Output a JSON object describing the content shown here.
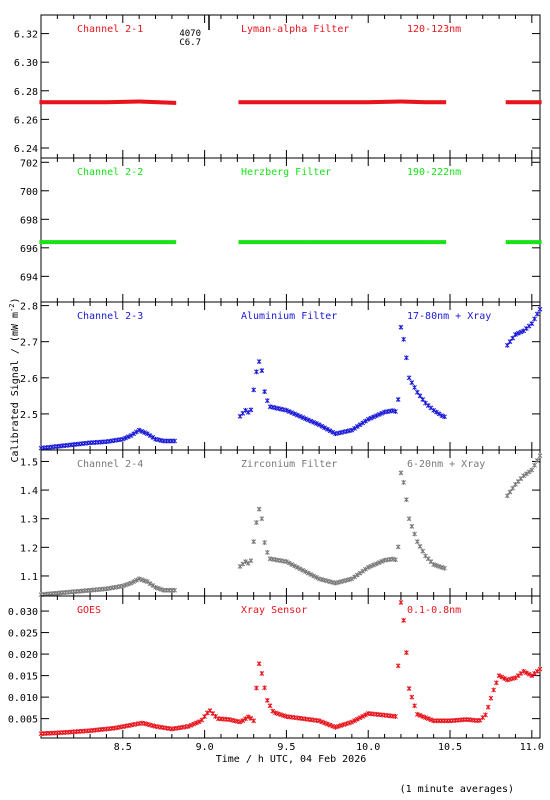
{
  "figure": {
    "ylabel": "Calibrated Signal / (mW m",
    "ylabel_exp": "-2",
    "ylabel_end": ")",
    "xlabel": "Time / h UTC, 04 Feb 2026",
    "footer": "(1 minute averages)",
    "marker_label_1": "4070",
    "marker_label_2": "C6.7"
  },
  "colors": {
    "red": "#e8141c",
    "green": "#17e317",
    "blue": "#1a1ad8",
    "gray": "#7a7a7a"
  },
  "chart_data": [
    {
      "type": "scatter",
      "labels": [
        "Channel 2-1",
        "Lyman-alpha Filter",
        "120-123nm"
      ],
      "color": "#e8141c",
      "xlim": [
        8.0,
        11.05
      ],
      "ylim": [
        6.233,
        6.333
      ],
      "ytick_values": [
        6.24,
        6.26,
        6.28,
        6.3,
        6.32
      ],
      "ytick_labels": [
        "6.24",
        "6.26",
        "6.28",
        "6.30",
        "6.32"
      ],
      "gaps": [
        [
          8.83,
          9.21
        ],
        [
          10.48,
          10.85
        ]
      ],
      "series": {
        "x": [
          8.0,
          8.2,
          8.4,
          8.6,
          8.83,
          9.21,
          9.5,
          9.8,
          10.0,
          10.2,
          10.35,
          10.48,
          10.85,
          11.05
        ],
        "y": [
          6.272,
          6.272,
          6.272,
          6.2725,
          6.2715,
          6.272,
          6.272,
          6.272,
          6.272,
          6.2725,
          6.272,
          6.272,
          6.272,
          6.272
        ]
      }
    },
    {
      "type": "scatter",
      "labels": [
        "Channel 2-2",
        "Herzberg Filter",
        "190-222nm"
      ],
      "color": "#17e317",
      "xlim": [
        8.0,
        11.05
      ],
      "ylim": [
        692.2,
        702.3
      ],
      "ytick_values": [
        694,
        696,
        698,
        700,
        702
      ],
      "ytick_labels": [
        "694",
        "696",
        "698",
        "700",
        "702"
      ],
      "gaps": [
        [
          8.83,
          9.21
        ],
        [
          10.48,
          10.85
        ]
      ],
      "series": {
        "x": [
          8.0,
          8.83,
          9.21,
          10.48,
          10.85,
          11.05
        ],
        "y": [
          696.4,
          696.4,
          696.4,
          696.4,
          696.4,
          696.4
        ]
      }
    },
    {
      "type": "scatter",
      "labels": [
        "Channel 2-3",
        "Aluminium Filter",
        "17-80nm + Xray"
      ],
      "color": "#1a1ad8",
      "xlim": [
        8.0,
        11.05
      ],
      "ylim": [
        2.4,
        2.81
      ],
      "ytick_values": [
        2.5,
        2.6,
        2.7,
        2.8
      ],
      "ytick_labels": [
        "2.5",
        "2.6",
        "2.7",
        "2.8"
      ],
      "gaps": [
        [
          8.83,
          9.21
        ],
        [
          10.48,
          10.85
        ]
      ],
      "series": {
        "x": [
          8.0,
          8.1,
          8.2,
          8.3,
          8.4,
          8.5,
          8.55,
          8.6,
          8.65,
          8.7,
          8.75,
          8.83,
          9.21,
          9.25,
          9.28,
          9.31,
          9.33,
          9.35,
          9.37,
          9.4,
          9.5,
          9.6,
          9.7,
          9.8,
          9.9,
          10.0,
          10.1,
          10.16,
          10.18,
          10.2,
          10.22,
          10.25,
          10.3,
          10.35,
          10.4,
          10.45,
          10.48,
          10.85,
          10.9,
          10.95,
          11.0,
          11.05
        ],
        "y": [
          2.405,
          2.41,
          2.415,
          2.42,
          2.423,
          2.43,
          2.44,
          2.455,
          2.445,
          2.43,
          2.425,
          2.425,
          2.49,
          2.51,
          2.5,
          2.6,
          2.65,
          2.62,
          2.55,
          2.52,
          2.51,
          2.49,
          2.47,
          2.445,
          2.455,
          2.485,
          2.505,
          2.51,
          2.5,
          2.74,
          2.7,
          2.6,
          2.56,
          2.53,
          2.51,
          2.495,
          2.49,
          2.69,
          2.72,
          2.73,
          2.75,
          2.79
        ]
      }
    },
    {
      "type": "scatter",
      "labels": [
        "Channel 2-4",
        "Zirconium Filter",
        "6-20nm + Xray"
      ],
      "color": "#7a7a7a",
      "xlim": [
        8.0,
        11.05
      ],
      "ylim": [
        1.03,
        1.54
      ],
      "ytick_values": [
        1.1,
        1.2,
        1.3,
        1.4,
        1.5
      ],
      "ytick_labels": [
        "1.1",
        "1.2",
        "1.3",
        "1.4",
        "1.5"
      ],
      "gaps": [
        [
          8.83,
          9.21
        ],
        [
          10.48,
          10.85
        ]
      ],
      "series": {
        "x": [
          8.0,
          8.1,
          8.2,
          8.3,
          8.4,
          8.5,
          8.55,
          8.6,
          8.65,
          8.7,
          8.75,
          8.83,
          9.21,
          9.25,
          9.28,
          9.31,
          9.33,
          9.35,
          9.37,
          9.4,
          9.5,
          9.6,
          9.7,
          9.8,
          9.9,
          10.0,
          10.1,
          10.16,
          10.18,
          10.2,
          10.22,
          10.25,
          10.3,
          10.35,
          10.4,
          10.45,
          10.48,
          10.85,
          10.9,
          10.95,
          11.0,
          11.05
        ],
        "y": [
          1.035,
          1.04,
          1.045,
          1.05,
          1.055,
          1.065,
          1.075,
          1.09,
          1.08,
          1.06,
          1.05,
          1.05,
          1.13,
          1.15,
          1.14,
          1.26,
          1.34,
          1.3,
          1.2,
          1.16,
          1.15,
          1.12,
          1.09,
          1.075,
          1.09,
          1.13,
          1.155,
          1.16,
          1.15,
          1.46,
          1.42,
          1.3,
          1.22,
          1.17,
          1.14,
          1.13,
          1.125,
          1.38,
          1.42,
          1.45,
          1.47,
          1.52
        ]
      }
    },
    {
      "type": "scatter",
      "labels": [
        "GOES",
        "Xray Sensor",
        "0.1-0.8nm"
      ],
      "color": "#e8141c",
      "xlim": [
        8.0,
        11.05
      ],
      "ylim": [
        0.0005,
        0.0335
      ],
      "ytick_values": [
        0.005,
        0.01,
        0.015,
        0.02,
        0.025,
        0.03
      ],
      "ytick_labels": [
        "0.005",
        "0.010",
        "0.015",
        "0.020",
        "0.025",
        "0.030"
      ],
      "xtick_values": [
        8.5,
        9.0,
        9.5,
        10.0,
        10.5,
        11.0
      ],
      "xtick_labels": [
        "8.5",
        "9.0",
        "9.5",
        "10.0",
        "10.5",
        "11.0"
      ],
      "series": {
        "x": [
          8.0,
          8.15,
          8.3,
          8.45,
          8.55,
          8.62,
          8.7,
          8.8,
          8.9,
          8.98,
          9.03,
          9.08,
          9.15,
          9.22,
          9.27,
          9.3,
          9.33,
          9.35,
          9.38,
          9.42,
          9.5,
          9.6,
          9.7,
          9.8,
          9.9,
          10.0,
          10.1,
          10.17,
          10.2,
          10.22,
          10.25,
          10.3,
          10.4,
          10.5,
          10.6,
          10.68,
          10.72,
          10.76,
          10.8,
          10.85,
          10.9,
          10.95,
          11.0,
          11.05
        ],
        "y": [
          0.0015,
          0.0018,
          0.0022,
          0.0028,
          0.0035,
          0.004,
          0.0032,
          0.0026,
          0.0032,
          0.0045,
          0.007,
          0.005,
          0.0048,
          0.0042,
          0.0055,
          0.0045,
          0.0182,
          0.0155,
          0.0095,
          0.0065,
          0.0055,
          0.005,
          0.0045,
          0.003,
          0.0042,
          0.0062,
          0.0058,
          0.0055,
          0.032,
          0.027,
          0.012,
          0.006,
          0.0045,
          0.0045,
          0.0048,
          0.0045,
          0.006,
          0.011,
          0.015,
          0.014,
          0.0145,
          0.016,
          0.015,
          0.0165
        ]
      }
    }
  ]
}
